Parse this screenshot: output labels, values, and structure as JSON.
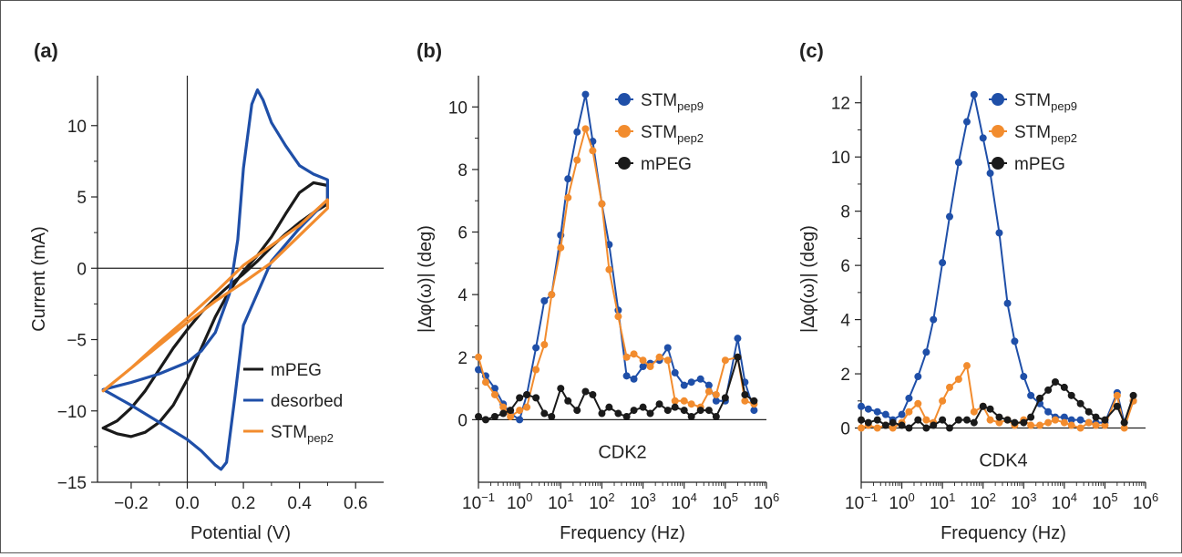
{
  "chart_data": [
    {
      "panel": "(a)",
      "type": "line",
      "xlabel": "Potential (V)",
      "ylabel": "Current (mA)",
      "xlim": [
        -0.32,
        0.7
      ],
      "ylim": [
        -15,
        13.5
      ],
      "xticks": [
        "−0.2",
        "0.0",
        "0.2",
        "0.4",
        "0.6"
      ],
      "xtick_values": [
        -0.2,
        0.0,
        0.2,
        0.4,
        0.6
      ],
      "yticks": [
        "10",
        "5",
        "0",
        "−5",
        "−10",
        "−15"
      ],
      "ytick_values": [
        10,
        5,
        0,
        -5,
        -10,
        -15
      ],
      "legend_position": "bottom-right",
      "series": [
        {
          "name": "mPEG",
          "color": "#1a1a1a",
          "x": [
            -0.3,
            -0.25,
            -0.2,
            -0.15,
            -0.1,
            -0.05,
            0.0,
            0.05,
            0.1,
            0.15,
            0.2,
            0.25,
            0.3,
            0.35,
            0.4,
            0.45,
            0.5,
            0.5,
            0.45,
            0.4,
            0.35,
            0.3,
            0.25,
            0.2,
            0.15,
            0.1,
            0.05,
            0.0,
            -0.05,
            -0.1,
            -0.15,
            -0.2,
            -0.25,
            -0.3
          ],
          "y": [
            -11.2,
            -11.6,
            -11.8,
            -11.5,
            -10.8,
            -9.6,
            -7.8,
            -5.6,
            -3.4,
            -1.6,
            -0.2,
            0.9,
            2.2,
            3.8,
            5.3,
            6.0,
            5.8,
            4.5,
            3.9,
            3.2,
            2.4,
            1.5,
            0.5,
            -0.4,
            -1.2,
            -2.1,
            -3.1,
            -4.3,
            -5.6,
            -7.1,
            -8.6,
            -9.8,
            -10.7,
            -11.2
          ]
        },
        {
          "name": "desorbed",
          "color": "#1f4fa8",
          "x": [
            -0.3,
            -0.2,
            -0.1,
            0.0,
            0.05,
            0.1,
            0.12,
            0.14,
            0.17,
            0.2,
            0.3,
            0.4,
            0.5,
            0.5,
            0.45,
            0.4,
            0.35,
            0.3,
            0.27,
            0.25,
            0.23,
            0.2,
            0.18,
            0.15,
            0.1,
            0.05,
            0.0,
            -0.1,
            -0.2,
            -0.3
          ],
          "y": [
            -8.5,
            -9.6,
            -10.8,
            -12.0,
            -12.8,
            -13.8,
            -14.1,
            -13.6,
            -9.0,
            -4.0,
            0.5,
            2.8,
            4.8,
            6.2,
            6.6,
            7.2,
            8.6,
            10.2,
            11.8,
            12.5,
            11.5,
            7.0,
            2.0,
            -1.8,
            -4.5,
            -5.8,
            -6.6,
            -7.4,
            -8.0,
            -8.5
          ]
        },
        {
          "name": "STMpep2",
          "color": "#f28c2e",
          "x": [
            -0.3,
            -0.2,
            -0.1,
            0.0,
            0.1,
            0.2,
            0.3,
            0.4,
            0.5,
            0.5,
            0.4,
            0.3,
            0.2,
            0.1,
            0.0,
            -0.1,
            -0.2,
            -0.3
          ],
          "y": [
            -8.6,
            -7.0,
            -5.2,
            -3.5,
            -1.7,
            0.2,
            1.6,
            3.0,
            4.8,
            4.2,
            2.3,
            0.4,
            -1.0,
            -2.3,
            -3.8,
            -5.4,
            -7.0,
            -8.6
          ]
        }
      ]
    },
    {
      "panel": "(b)",
      "type": "line",
      "annotation": "CDK2",
      "xlabel": "Frequency (Hz)",
      "ylabel": "|Δφ(ω)| (deg)",
      "x_scale": "log",
      "xlim": [
        0.1,
        1000000
      ],
      "ylim": [
        -2,
        11
      ],
      "xticks": [
        "10−1",
        "100",
        "101",
        "102",
        "103",
        "104",
        "105",
        "106"
      ],
      "yticks": [
        "10",
        "8",
        "6",
        "4",
        "2",
        "0"
      ],
      "ytick_values": [
        10,
        8,
        6,
        4,
        2,
        0
      ],
      "legend_position": "top-right",
      "series": [
        {
          "name": "STMpep9",
          "color": "#1f4fa8",
          "x": [
            0.1,
            0.15,
            0.25,
            0.4,
            0.6,
            1,
            1.5,
            2.5,
            4,
            6,
            10,
            15,
            25,
            40,
            60,
            100,
            150,
            250,
            400,
            600,
            1000,
            1500,
            2500,
            4000,
            6000,
            10000,
            15000,
            25000,
            40000,
            60000,
            100000,
            200000,
            300000,
            500000
          ],
          "y": [
            1.6,
            1.4,
            1.0,
            0.5,
            0.2,
            0.0,
            0.8,
            2.3,
            3.8,
            4.0,
            5.9,
            7.7,
            9.2,
            10.4,
            8.9,
            6.9,
            5.6,
            3.5,
            1.4,
            1.3,
            1.7,
            1.8,
            1.9,
            2.3,
            1.5,
            1.1,
            1.2,
            1.3,
            1.1,
            0.6,
            0.6,
            2.6,
            1.2,
            0.3
          ]
        },
        {
          "name": "STMpep2",
          "color": "#f28c2e",
          "x": [
            0.1,
            0.15,
            0.25,
            0.4,
            0.6,
            1,
            1.5,
            2.5,
            4,
            6,
            10,
            15,
            25,
            40,
            60,
            100,
            150,
            250,
            400,
            600,
            1000,
            1500,
            2500,
            4000,
            6000,
            10000,
            15000,
            25000,
            40000,
            60000,
            100000,
            200000,
            300000,
            500000
          ],
          "y": [
            2.0,
            1.2,
            0.8,
            0.4,
            0.1,
            0.3,
            0.4,
            1.6,
            2.4,
            4.0,
            5.5,
            7.1,
            8.3,
            9.3,
            8.6,
            6.9,
            4.8,
            3.3,
            2.0,
            2.1,
            1.9,
            1.7,
            2.0,
            1.9,
            0.6,
            0.6,
            0.5,
            0.4,
            0.9,
            0.8,
            1.9,
            2.0,
            0.6,
            0.5
          ]
        },
        {
          "name": "mPEG",
          "color": "#1a1a1a",
          "x": [
            0.1,
            0.15,
            0.25,
            0.4,
            0.6,
            1,
            1.5,
            2.5,
            4,
            6,
            10,
            15,
            25,
            40,
            60,
            100,
            150,
            250,
            400,
            600,
            1000,
            1500,
            2500,
            4000,
            6000,
            10000,
            15000,
            25000,
            40000,
            60000,
            100000,
            200000,
            300000,
            500000
          ],
          "y": [
            0.1,
            0.0,
            0.1,
            0.2,
            0.3,
            0.7,
            0.8,
            0.7,
            0.2,
            0.1,
            1.0,
            0.6,
            0.3,
            0.9,
            0.8,
            0.2,
            0.4,
            0.2,
            0.1,
            0.3,
            0.4,
            0.2,
            0.5,
            0.3,
            0.4,
            0.3,
            0.1,
            0.3,
            0.3,
            0.1,
            0.7,
            2.0,
            0.8,
            0.6
          ]
        }
      ]
    },
    {
      "panel": "(c)",
      "type": "line",
      "annotation": "CDK4",
      "xlabel": "Frequency (Hz)",
      "ylabel": "|Δφ(ω)| (deg)",
      "x_scale": "log",
      "xlim": [
        0.1,
        1000000
      ],
      "ylim": [
        -2,
        13
      ],
      "xticks": [
        "10−1",
        "100",
        "101",
        "102",
        "103",
        "104",
        "105",
        "106"
      ],
      "yticks": [
        "12",
        "10",
        "8",
        "6",
        "4",
        "2",
        "0"
      ],
      "ytick_values": [
        12,
        10,
        8,
        6,
        4,
        2,
        0
      ],
      "legend_position": "top-right",
      "series": [
        {
          "name": "STMpep9",
          "color": "#1f4fa8",
          "x": [
            0.1,
            0.15,
            0.25,
            0.4,
            0.6,
            1,
            1.5,
            2.5,
            4,
            6,
            10,
            15,
            25,
            40,
            60,
            100,
            150,
            250,
            400,
            600,
            1000,
            1500,
            2500,
            4000,
            6000,
            10000,
            15000,
            25000,
            40000,
            60000,
            100000,
            200000,
            300000,
            500000
          ],
          "y": [
            0.8,
            0.7,
            0.6,
            0.5,
            0.3,
            0.5,
            1.1,
            1.9,
            2.8,
            4.0,
            6.1,
            7.8,
            9.8,
            11.3,
            12.3,
            10.7,
            9.4,
            7.2,
            4.6,
            3.2,
            1.9,
            1.2,
            0.9,
            0.6,
            0.4,
            0.4,
            0.3,
            0.3,
            0.2,
            0.2,
            0.2,
            1.3,
            0.2,
            1.0
          ]
        },
        {
          "name": "STMpep2",
          "color": "#f28c2e",
          "x": [
            0.1,
            0.15,
            0.25,
            0.4,
            0.6,
            1,
            1.5,
            2.5,
            4,
            6,
            10,
            15,
            25,
            40,
            60,
            100,
            150,
            250,
            400,
            600,
            1000,
            1500,
            2500,
            4000,
            6000,
            10000,
            15000,
            25000,
            40000,
            60000,
            100000,
            200000,
            300000,
            500000
          ],
          "y": [
            0.0,
            0.1,
            0.0,
            0.1,
            0.0,
            0.2,
            0.6,
            0.9,
            0.3,
            0.2,
            1.0,
            1.5,
            1.8,
            2.3,
            0.6,
            0.8,
            0.3,
            0.2,
            0.3,
            0.1,
            0.3,
            0.1,
            0.1,
            0.2,
            0.3,
            0.2,
            0.1,
            0.0,
            0.2,
            0.1,
            0.1,
            1.2,
            0.0,
            1.0
          ]
        },
        {
          "name": "mPEG",
          "color": "#1a1a1a",
          "x": [
            0.1,
            0.15,
            0.25,
            0.4,
            0.6,
            1,
            1.5,
            2.5,
            4,
            6,
            10,
            15,
            25,
            40,
            60,
            100,
            150,
            250,
            400,
            600,
            1000,
            1500,
            2500,
            4000,
            6000,
            10000,
            15000,
            25000,
            40000,
            60000,
            100000,
            200000,
            300000,
            500000
          ],
          "y": [
            0.3,
            0.2,
            0.3,
            0.1,
            0.2,
            0.1,
            0.0,
            0.3,
            0.0,
            0.1,
            0.3,
            0.0,
            0.3,
            0.3,
            0.2,
            0.8,
            0.7,
            0.4,
            0.3,
            0.2,
            0.2,
            0.4,
            1.1,
            1.4,
            1.7,
            1.5,
            1.2,
            0.9,
            0.6,
            0.4,
            0.3,
            0.8,
            0.2,
            1.2
          ]
        }
      ]
    }
  ]
}
